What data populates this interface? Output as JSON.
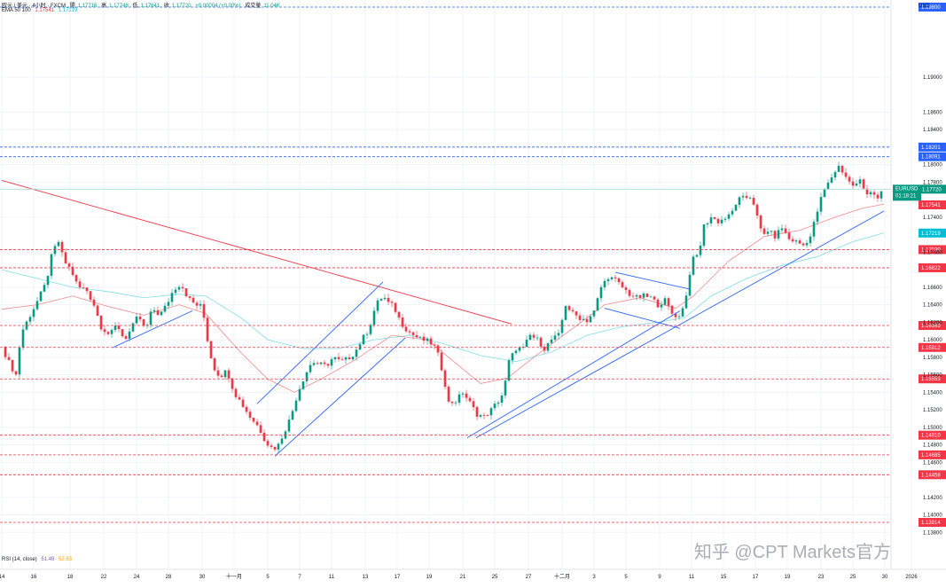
{
  "header": {
    "symbol": "欧元 / 美元 · 4小时 · FXCM",
    "open_label": "開",
    "open": "1.17716",
    "high_label": "高",
    "high": "1.17748",
    "low_label": "低",
    "low": "1.17641",
    "close_label": "收",
    "close": "1.17720",
    "change": "+0.00004 (+0.00%)",
    "volume_label": "成交量",
    "volume": "11.04K",
    "ema_label": "EMA 50 100",
    "ema50": "1.17541",
    "ema100": "1.17219"
  },
  "rsi": {
    "label": "RSI (14, close)",
    "value1": "51.49",
    "value2": "52.83"
  },
  "watermark": "知乎 @CPT Markets官方",
  "chart_data": {
    "type": "candlestick",
    "symbol": "EURUSD",
    "currency": "USD",
    "ylim": [
      1.136,
      1.198
    ],
    "y_ticks": [
      "1.19000",
      "1.18600",
      "1.18400",
      "1.18000",
      "1.17800",
      "1.17400",
      "1.17000",
      "1.16600",
      "1.16400",
      "1.16200",
      "1.16000",
      "1.15800",
      "1.15600",
      "1.15400",
      "1.15200",
      "1.15000",
      "1.14800",
      "1.14600",
      "1.14200",
      "1.14000",
      "1.13800"
    ],
    "x_ticks": [
      {
        "label": "14",
        "t": 0
      },
      {
        "label": "16",
        "t": 36
      },
      {
        "label": "18",
        "t": 77
      },
      {
        "label": "22",
        "t": 115
      },
      {
        "label": "24",
        "t": 152
      },
      {
        "label": "28",
        "t": 188
      },
      {
        "label": "30",
        "t": 226
      },
      {
        "label": "十一月",
        "t": 262
      },
      {
        "label": "5",
        "t": 300
      },
      {
        "label": "7",
        "t": 336
      },
      {
        "label": "11",
        "t": 372
      },
      {
        "label": "13",
        "t": 410
      },
      {
        "label": "17",
        "t": 446
      },
      {
        "label": "19",
        "t": 482
      },
      {
        "label": "21",
        "t": 520
      },
      {
        "label": "25",
        "t": 556
      },
      {
        "label": "27",
        "t": 594
      },
      {
        "label": "十二月",
        "t": 632
      },
      {
        "label": "3",
        "t": 668
      },
      {
        "label": "5",
        "t": 704
      },
      {
        "label": "9",
        "t": 742
      },
      {
        "label": "11",
        "t": 778
      },
      {
        "label": "15",
        "t": 814
      },
      {
        "label": "17",
        "t": 850
      },
      {
        "label": "19",
        "t": 886
      },
      {
        "label": "23",
        "t": 924
      },
      {
        "label": "25",
        "t": 960
      },
      {
        "label": "30",
        "t": 996
      },
      {
        "label": "2026",
        "t": 1026
      }
    ],
    "price_levels": [
      {
        "price": "1.19800",
        "color": "#2962ff",
        "line": "#2962ff"
      },
      {
        "price": "1.18201",
        "color": "#2962ff",
        "line": "#2962ff"
      },
      {
        "price": "1.18091",
        "color": "#2962ff",
        "line": "#2962ff"
      },
      {
        "price": "1.17720",
        "color": "#089981",
        "line": "#a8dcd8",
        "tag": "EURUSD",
        "sub": "01:18:21"
      },
      {
        "price": "1.17541",
        "color": "#f23645",
        "line": null
      },
      {
        "price": "1.17219",
        "color": "#00bcd4",
        "line": null
      },
      {
        "price": "1.17030",
        "color": "#f23645",
        "line": "#f23645"
      },
      {
        "price": "1.16822",
        "color": "#f23645",
        "line": "#f23645"
      },
      {
        "price": "1.16163",
        "color": "#f23645",
        "line": "#f23645"
      },
      {
        "price": "1.15912",
        "color": "#f23645",
        "line": "#f23645"
      },
      {
        "price": "1.15553",
        "color": "#f23645",
        "line": "#f23645"
      },
      {
        "price": "1.14910",
        "color": "#f23645",
        "line": "#f23645"
      },
      {
        "price": "1.14685",
        "color": "#f23645",
        "line": "#f23645"
      },
      {
        "price": "1.14458",
        "color": "#f23645",
        "line": "#f23645"
      },
      {
        "price": "1.13914",
        "color": "#f23645",
        "line": "#f23645"
      }
    ],
    "trend_lines": [
      {
        "color": "#f23645",
        "t1": 0,
        "p1": 1.1782,
        "t2": 575,
        "p2": 1.1618
      },
      {
        "color": "#2962ff",
        "t1": 125,
        "p1": 1.1591,
        "t2": 215,
        "p2": 1.1633
      },
      {
        "color": "#2962ff",
        "t1": 288,
        "p1": 1.1527,
        "t2": 430,
        "p2": 1.1666
      },
      {
        "color": "#2962ff",
        "t1": 308,
        "p1": 1.1467,
        "t2": 455,
        "p2": 1.1602
      },
      {
        "color": "#2962ff",
        "t1": 525,
        "p1": 1.1488,
        "t2": 765,
        "p2": 1.1633
      },
      {
        "color": "#2962ff",
        "t1": 535,
        "p1": 1.1488,
        "t2": 995,
        "p2": 1.1747
      },
      {
        "color": "#2962ff",
        "t1": 692,
        "p1": 1.1677,
        "t2": 775,
        "p2": 1.1658
      },
      {
        "color": "#2962ff",
        "t1": 680,
        "p1": 1.1636,
        "t2": 765,
        "p2": 1.1613
      }
    ],
    "close_path": [
      [
        0,
        1.1592
      ],
      [
        10,
        1.157
      ],
      [
        16,
        1.156
      ],
      [
        22,
        1.1608
      ],
      [
        32,
        1.1628
      ],
      [
        42,
        1.1648
      ],
      [
        50,
        1.1665
      ],
      [
        57,
        1.17
      ],
      [
        64,
        1.1712
      ],
      [
        70,
        1.169
      ],
      [
        78,
        1.168
      ],
      [
        86,
        1.166
      ],
      [
        95,
        1.1658
      ],
      [
        104,
        1.164
      ],
      [
        112,
        1.1615
      ],
      [
        122,
        1.1605
      ],
      [
        130,
        1.1618
      ],
      [
        138,
        1.16
      ],
      [
        146,
        1.1612
      ],
      [
        154,
        1.1628
      ],
      [
        162,
        1.161
      ],
      [
        170,
        1.1636
      ],
      [
        178,
        1.1628
      ],
      [
        186,
        1.164
      ],
      [
        194,
        1.1658
      ],
      [
        202,
        1.1664
      ],
      [
        210,
        1.1648
      ],
      [
        218,
        1.164
      ],
      [
        226,
        1.1638
      ],
      [
        232,
        1.16
      ],
      [
        238,
        1.157
      ],
      [
        246,
        1.1558
      ],
      [
        254,
        1.1565
      ],
      [
        262,
        1.154
      ],
      [
        270,
        1.1528
      ],
      [
        280,
        1.1512
      ],
      [
        290,
        1.15
      ],
      [
        298,
        1.1483
      ],
      [
        306,
        1.1475
      ],
      [
        312,
        1.148
      ],
      [
        320,
        1.1498
      ],
      [
        326,
        1.1512
      ],
      [
        334,
        1.154
      ],
      [
        342,
        1.156
      ],
      [
        350,
        1.1575
      ],
      [
        358,
        1.1572
      ],
      [
        366,
        1.157
      ],
      [
        374,
        1.158
      ],
      [
        382,
        1.1575
      ],
      [
        390,
        1.1578
      ],
      [
        398,
        1.1585
      ],
      [
        406,
        1.16
      ],
      [
        414,
        1.1612
      ],
      [
        422,
        1.164
      ],
      [
        430,
        1.165
      ],
      [
        436,
        1.1642
      ],
      [
        442,
        1.1638
      ],
      [
        450,
        1.162
      ],
      [
        458,
        1.161
      ],
      [
        466,
        1.1604
      ],
      [
        474,
        1.16
      ],
      [
        482,
        1.1598
      ],
      [
        490,
        1.159
      ],
      [
        498,
        1.156
      ],
      [
        504,
        1.1528
      ],
      [
        512,
        1.153
      ],
      [
        520,
        1.154
      ],
      [
        528,
        1.1528
      ],
      [
        536,
        1.1515
      ],
      [
        544,
        1.1512
      ],
      [
        552,
        1.152
      ],
      [
        560,
        1.153
      ],
      [
        566,
        1.154
      ],
      [
        572,
        1.1575
      ],
      [
        580,
        1.159
      ],
      [
        588,
        1.159
      ],
      [
        596,
        1.1605
      ],
      [
        604,
        1.16
      ],
      [
        612,
        1.159
      ],
      [
        620,
        1.16
      ],
      [
        628,
        1.1605
      ],
      [
        636,
        1.164
      ],
      [
        644,
        1.163
      ],
      [
        652,
        1.1625
      ],
      [
        660,
        1.1622
      ],
      [
        668,
        1.1632
      ],
      [
        676,
        1.166
      ],
      [
        684,
        1.1672
      ],
      [
        692,
        1.1668
      ],
      [
        700,
        1.166
      ],
      [
        708,
        1.1652
      ],
      [
        716,
        1.1648
      ],
      [
        724,
        1.165
      ],
      [
        732,
        1.1648
      ],
      [
        740,
        1.164
      ],
      [
        748,
        1.1645
      ],
      [
        756,
        1.163
      ],
      [
        764,
        1.1626
      ],
      [
        772,
        1.165
      ],
      [
        778,
        1.169
      ],
      [
        786,
        1.1698
      ],
      [
        792,
        1.173
      ],
      [
        800,
        1.174
      ],
      [
        808,
        1.1735
      ],
      [
        814,
        1.1738
      ],
      [
        822,
        1.1742
      ],
      [
        830,
        1.176
      ],
      [
        838,
        1.1762
      ],
      [
        846,
        1.1764
      ],
      [
        852,
        1.174
      ],
      [
        858,
        1.1718
      ],
      [
        864,
        1.1725
      ],
      [
        872,
        1.1718
      ],
      [
        880,
        1.1728
      ],
      [
        888,
        1.1715
      ],
      [
        896,
        1.1712
      ],
      [
        904,
        1.1708
      ],
      [
        912,
        1.1718
      ],
      [
        918,
        1.174
      ],
      [
        926,
        1.1768
      ],
      [
        932,
        1.1778
      ],
      [
        938,
        1.179
      ],
      [
        944,
        1.1798
      ],
      [
        950,
        1.179
      ],
      [
        956,
        1.178
      ],
      [
        962,
        1.1775
      ],
      [
        968,
        1.1782
      ],
      [
        974,
        1.1768
      ],
      [
        982,
        1.177
      ],
      [
        988,
        1.176
      ],
      [
        995,
        1.1772
      ]
    ],
    "ema50_path": [
      [
        0,
        1.1635
      ],
      [
        40,
        1.164
      ],
      [
        80,
        1.165
      ],
      [
        120,
        1.1638
      ],
      [
        160,
        1.1628
      ],
      [
        200,
        1.164
      ],
      [
        230,
        1.163
      ],
      [
        270,
        1.1585
      ],
      [
        300,
        1.1555
      ],
      [
        330,
        1.154
      ],
      [
        360,
        1.1555
      ],
      [
        400,
        1.1578
      ],
      [
        440,
        1.1605
      ],
      [
        480,
        1.16
      ],
      [
        510,
        1.1575
      ],
      [
        540,
        1.155
      ],
      [
        570,
        1.1556
      ],
      [
        600,
        1.158
      ],
      [
        640,
        1.161
      ],
      [
        680,
        1.164
      ],
      [
        720,
        1.1648
      ],
      [
        760,
        1.1636
      ],
      [
        780,
        1.165
      ],
      [
        820,
        1.169
      ],
      [
        860,
        1.1718
      ],
      [
        900,
        1.1725
      ],
      [
        940,
        1.174
      ],
      [
        970,
        1.175
      ],
      [
        995,
        1.1755
      ]
    ],
    "ema100_path": [
      [
        0,
        1.168
      ],
      [
        40,
        1.167
      ],
      [
        80,
        1.166
      ],
      [
        120,
        1.1655
      ],
      [
        160,
        1.1648
      ],
      [
        200,
        1.1652
      ],
      [
        230,
        1.165
      ],
      [
        270,
        1.1625
      ],
      [
        300,
        1.16
      ],
      [
        340,
        1.159
      ],
      [
        380,
        1.159
      ],
      [
        420,
        1.16
      ],
      [
        460,
        1.1605
      ],
      [
        500,
        1.1595
      ],
      [
        540,
        1.1582
      ],
      [
        580,
        1.1575
      ],
      [
        620,
        1.1586
      ],
      [
        660,
        1.1605
      ],
      [
        700,
        1.1615
      ],
      [
        740,
        1.162
      ],
      [
        770,
        1.1625
      ],
      [
        800,
        1.165
      ],
      [
        840,
        1.167
      ],
      [
        880,
        1.1685
      ],
      [
        920,
        1.1695
      ],
      [
        960,
        1.1712
      ],
      [
        995,
        1.1722
      ]
    ]
  }
}
